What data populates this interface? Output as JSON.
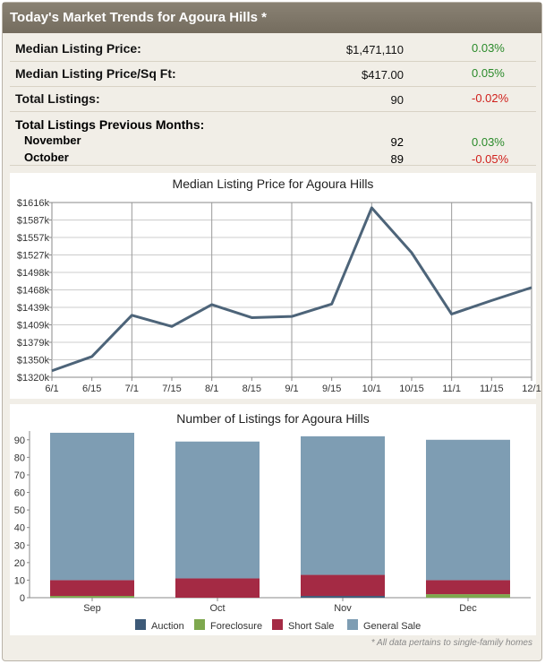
{
  "header": {
    "title": "Today's Market Trends for Agoura Hills *"
  },
  "stats": [
    {
      "label": "Median Listing Price:",
      "value": "$1,471,110",
      "change": "0.03%",
      "dir": "pos"
    },
    {
      "label": "Median Listing Price/Sq Ft:",
      "value": "$417.00",
      "change": "0.05%",
      "dir": "pos"
    },
    {
      "label": "Total Listings:",
      "value": "90",
      "change": "-0.02%",
      "dir": "neg"
    }
  ],
  "previous": {
    "label": "Total Listings Previous Months:",
    "items": [
      {
        "month": "November",
        "value": "92",
        "change": "0.03%",
        "dir": "pos"
      },
      {
        "month": "October",
        "value": "89",
        "change": "-0.05%",
        "dir": "neg"
      }
    ]
  },
  "chart_data": [
    {
      "type": "line",
      "title": "Median Listing Price for Agoura Hills",
      "x": [
        "6/1",
        "6/15",
        "7/1",
        "7/15",
        "8/1",
        "8/15",
        "9/1",
        "9/15",
        "10/1",
        "10/15",
        "11/1",
        "11/15",
        "12/1"
      ],
      "y": [
        1331,
        1355,
        1425,
        1406,
        1443,
        1421,
        1423,
        1444,
        1607,
        1531,
        1427,
        1450,
        1472
      ],
      "yticks": [
        "$1320k",
        "$1350k",
        "$1379k",
        "$1409k",
        "$1439k",
        "$1468k",
        "$1498k",
        "$1527k",
        "$1557k",
        "$1587k",
        "$1616k"
      ],
      "ylim": [
        1320,
        1616
      ],
      "grid": true,
      "color": "#4d6479"
    },
    {
      "type": "bar",
      "stacked": true,
      "title": "Number of Listings for Agoura Hills",
      "categories": [
        "Sep",
        "Oct",
        "Nov",
        "Dec"
      ],
      "series": [
        {
          "name": "Auction",
          "values": [
            0,
            0,
            1,
            0
          ],
          "color": "#3d5a78"
        },
        {
          "name": "Foreclosure",
          "values": [
            1,
            0,
            0,
            2
          ],
          "color": "#7ea84e"
        },
        {
          "name": "Short Sale",
          "values": [
            9,
            11,
            12,
            8
          ],
          "color": "#a42a44"
        },
        {
          "name": "General Sale",
          "values": [
            84,
            78,
            79,
            80
          ],
          "color": "#7e9db3"
        }
      ],
      "yticks": [
        "0",
        "10",
        "20",
        "30",
        "40",
        "50",
        "60",
        "70",
        "80",
        "90"
      ],
      "ylim": [
        0,
        95
      ],
      "legend": "bottom"
    }
  ],
  "footnote": "* All data pertains to single-family homes"
}
